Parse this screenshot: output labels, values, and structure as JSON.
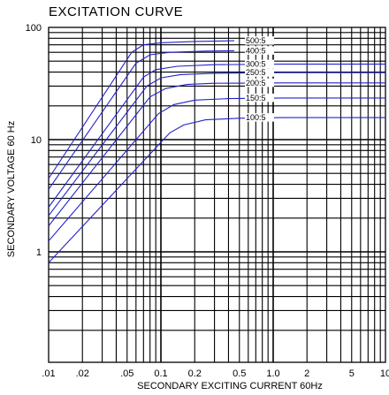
{
  "chart_data": {
    "type": "line",
    "title": "EXCITATION  CURVE",
    "xlabel": "SECONDARY  EXCITING  CURRENT  60Hz",
    "ylabel": "SECONDARY  VOLTAGE  60  Hz",
    "x_scale": "log",
    "y_scale": "log",
    "xlim": [
      0.01,
      10
    ],
    "ylim": [
      0.2,
      100
    ],
    "x_ticks": [
      {
        "value": 0.01,
        "label": ".01"
      },
      {
        "value": 0.02,
        "label": ".02"
      },
      {
        "value": 0.05,
        "label": ".05"
      },
      {
        "value": 0.1,
        "label": "0.1"
      },
      {
        "value": 0.2,
        "label": "0.2"
      },
      {
        "value": 0.5,
        "label": "0.5"
      },
      {
        "value": 1,
        "label": "1.0"
      },
      {
        "value": 2,
        "label": "2"
      },
      {
        "value": 5,
        "label": "5"
      },
      {
        "value": 10,
        "label": "10"
      }
    ],
    "y_ticks": [
      {
        "value": 1,
        "label": "1"
      },
      {
        "value": 10,
        "label": "10"
      },
      {
        "value": 100,
        "label": "100"
      }
    ],
    "grid": true,
    "line_color": "#2222cc",
    "series": [
      {
        "name": "500:5",
        "x": [
          0.01,
          0.055,
          0.07,
          0.1,
          0.2,
          0.45
        ],
        "y": [
          4.5,
          60,
          70,
          73,
          75,
          76
        ]
      },
      {
        "name": "400:5",
        "x": [
          0.01,
          0.06,
          0.08,
          0.12,
          0.25,
          0.45
        ],
        "y": [
          3.6,
          48,
          57,
          60,
          61.5,
          62
        ]
      },
      {
        "name": "300:5",
        "x": [
          0.01,
          0.07,
          0.09,
          0.14,
          0.3,
          1.25,
          10
        ],
        "y": [
          2.5,
          36,
          42,
          45,
          46.5,
          47,
          47
        ]
      },
      {
        "name": "250:5",
        "x": [
          0.01,
          0.075,
          0.1,
          0.15,
          0.3,
          1.2,
          10
        ],
        "y": [
          2.1,
          30,
          35.5,
          38,
          39,
          39.5,
          39.5
        ]
      },
      {
        "name": "200:5",
        "x": [
          0.01,
          0.08,
          0.11,
          0.17,
          0.3,
          1.2,
          10
        ],
        "y": [
          1.7,
          24,
          28.5,
          31,
          31.8,
          32,
          32
        ]
      },
      {
        "name": "150:5",
        "x": [
          0.01,
          0.095,
          0.13,
          0.2,
          0.4,
          1.2,
          10
        ],
        "y": [
          1.25,
          17,
          20.5,
          22.5,
          23.2,
          23.5,
          23.5
        ]
      },
      {
        "name": "100:5",
        "x": [
          0.01,
          0.12,
          0.16,
          0.25,
          0.5,
          1.2,
          10
        ],
        "y": [
          0.8,
          11.5,
          13.5,
          15,
          15.5,
          15.7,
          15.7
        ]
      }
    ]
  }
}
